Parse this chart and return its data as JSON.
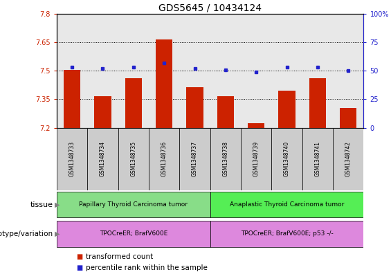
{
  "title": "GDS5645 / 10434124",
  "samples": [
    "GSM1348733",
    "GSM1348734",
    "GSM1348735",
    "GSM1348736",
    "GSM1348737",
    "GSM1348738",
    "GSM1348739",
    "GSM1348740",
    "GSM1348741",
    "GSM1348742"
  ],
  "transformed_count": [
    7.505,
    7.365,
    7.46,
    7.665,
    7.415,
    7.365,
    7.225,
    7.395,
    7.46,
    7.305
  ],
  "percentile_rank": [
    53,
    52,
    53,
    57,
    52,
    51,
    49,
    53,
    53,
    50
  ],
  "ylim_left": [
    7.2,
    7.8
  ],
  "ylim_right": [
    0,
    100
  ],
  "yticks_left": [
    7.2,
    7.35,
    7.5,
    7.65,
    7.8
  ],
  "yticks_right": [
    0,
    25,
    50,
    75,
    100
  ],
  "bar_color": "#cc2200",
  "dot_color": "#2222cc",
  "bg_color": "#ffffff",
  "grid_color": "#000000",
  "sample_box_color": "#cccccc",
  "tissue_groups": [
    {
      "label": "Papillary Thyroid Carcinoma tumor",
      "start": 0,
      "end": 4,
      "color": "#88dd88"
    },
    {
      "label": "Anaplastic Thyroid Carcinoma tumor",
      "start": 5,
      "end": 9,
      "color": "#55ee55"
    }
  ],
  "genotype_groups": [
    {
      "label": "TPOCreER; BrafV600E",
      "start": 0,
      "end": 4,
      "color": "#dd88dd"
    },
    {
      "label": "TPOCreER; BrafV600E; p53 -/-",
      "start": 5,
      "end": 9,
      "color": "#dd88dd"
    }
  ],
  "tissue_label": "tissue",
  "genotype_label": "genotype/variation",
  "legend_items": [
    {
      "color": "#cc2200",
      "label": "transformed count"
    },
    {
      "color": "#2222cc",
      "label": "percentile rank within the sample"
    }
  ],
  "title_fontsize": 10,
  "tick_fontsize": 7,
  "label_fontsize": 8,
  "annotation_fontsize": 7.5
}
